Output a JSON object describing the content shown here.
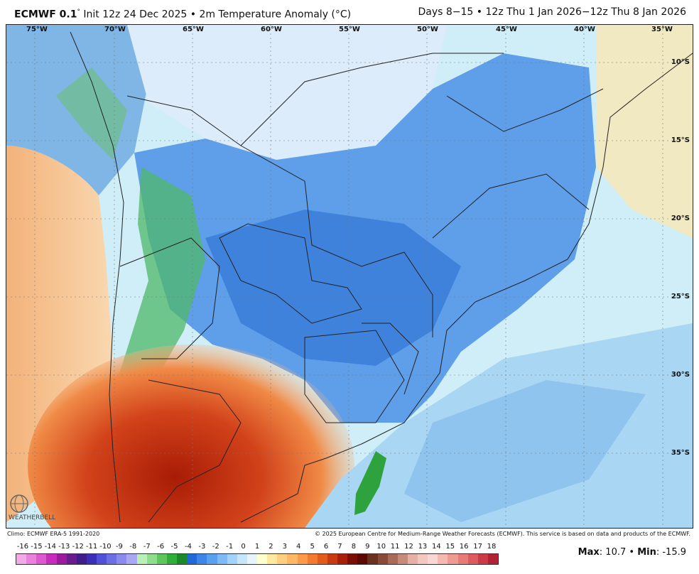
{
  "header": {
    "model": "ECMWF 0.1",
    "deg": "°",
    "title_rest": " Init 12z 24 Dec 2025 • 2m Temperature Anomaly (°C)",
    "valid": "Days 8−15 • 12z Thu 1 Jan 2026−12z Thu 8 Jan 2026"
  },
  "map": {
    "lon_labels": [
      "75°W",
      "70°W",
      "65°W",
      "60°W",
      "55°W",
      "50°W",
      "45°W",
      "40°W",
      "35°W"
    ],
    "lat_labels": [
      "10°S",
      "15°S",
      "20°S",
      "25°S",
      "30°S",
      "35°S"
    ]
  },
  "credits": {
    "left": "Climo: ECMWF ERA-5 1991-2020",
    "right": "© 2025 European Centre for Medium-Range Weather Forecasts (ECMWF). This service is based on data and products of the ECMWF."
  },
  "legend": {
    "labels": [
      "-16",
      "-15",
      "-14",
      "-13",
      "-12",
      "-11",
      "-10",
      "-9",
      "-8",
      "-7",
      "-6",
      "-5",
      "-4",
      "-3",
      "-2",
      "-1",
      "0",
      "1",
      "2",
      "3",
      "4",
      "5",
      "6",
      "7",
      "8",
      "9",
      "10",
      "11",
      "12",
      "13",
      "14",
      "15",
      "16",
      "17",
      "18"
    ],
    "colors": [
      "#f5a8e8",
      "#ec80dd",
      "#de58cf",
      "#c82cbc",
      "#9e1a9c",
      "#6a1b8e",
      "#3f1e8c",
      "#3b2fb8",
      "#5050d8",
      "#6d6de6",
      "#8a8aef",
      "#a8a8f5",
      "#b8f0b8",
      "#8ce08c",
      "#5cc85c",
      "#2fae3a",
      "#1a8a2a",
      "#1f6ad8",
      "#3b86e8",
      "#5aa0f0",
      "#7dbaf6",
      "#a3d2fa",
      "#c6e6fc",
      "#e6f4fe",
      "#ffffd0",
      "#ffe8a0",
      "#ffd080",
      "#ffb866",
      "#ff9a4a",
      "#f47a30",
      "#e25a1c",
      "#c83a10",
      "#a82008",
      "#7a1004",
      "#5a0a02",
      "#6a3020",
      "#8a4a3a",
      "#aa6a5a",
      "#c88a7a",
      "#e6b0a6",
      "#f4c8c0",
      "#f8d8d4",
      "#f6b8b0",
      "#f09a94",
      "#e87a78",
      "#dc5a60",
      "#cc3a48",
      "#b02234"
    ]
  },
  "stats": {
    "max_label": "Max",
    "max_value": ": 10.7",
    "sep": " • ",
    "min_label": "Min",
    "min_value": ": -15.9"
  },
  "logo": "WEATHERBELL"
}
